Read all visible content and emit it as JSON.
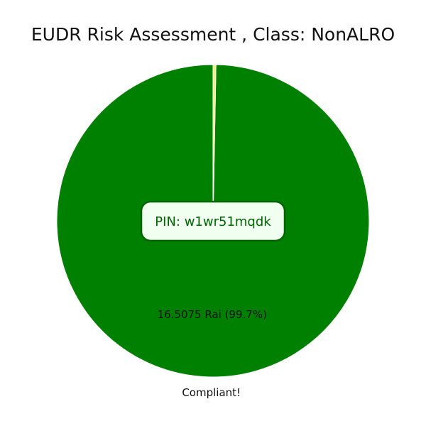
{
  "chart_data": {
    "type": "pie",
    "title": "EUDR Risk Assessment , Class: NonALRO",
    "slices": [
      {
        "label": "Compliant!",
        "value": 16.5075,
        "percent": 99.7,
        "value_label": "16.5075 Rai (99.7%)",
        "color": "#008000"
      },
      {
        "label": "",
        "value": 0.05,
        "percent": 0.3,
        "value_label": "",
        "color": "#f0f07a"
      }
    ],
    "start_angle_deg": 90,
    "direction": "counterclockwise"
  },
  "pin_badge": {
    "text": "PIN: w1wr51mqdk",
    "text_color": "#006400",
    "background": "#f0fff0",
    "border_color": "#006400"
  },
  "colors": {
    "slice_edge": "#ffffff"
  }
}
